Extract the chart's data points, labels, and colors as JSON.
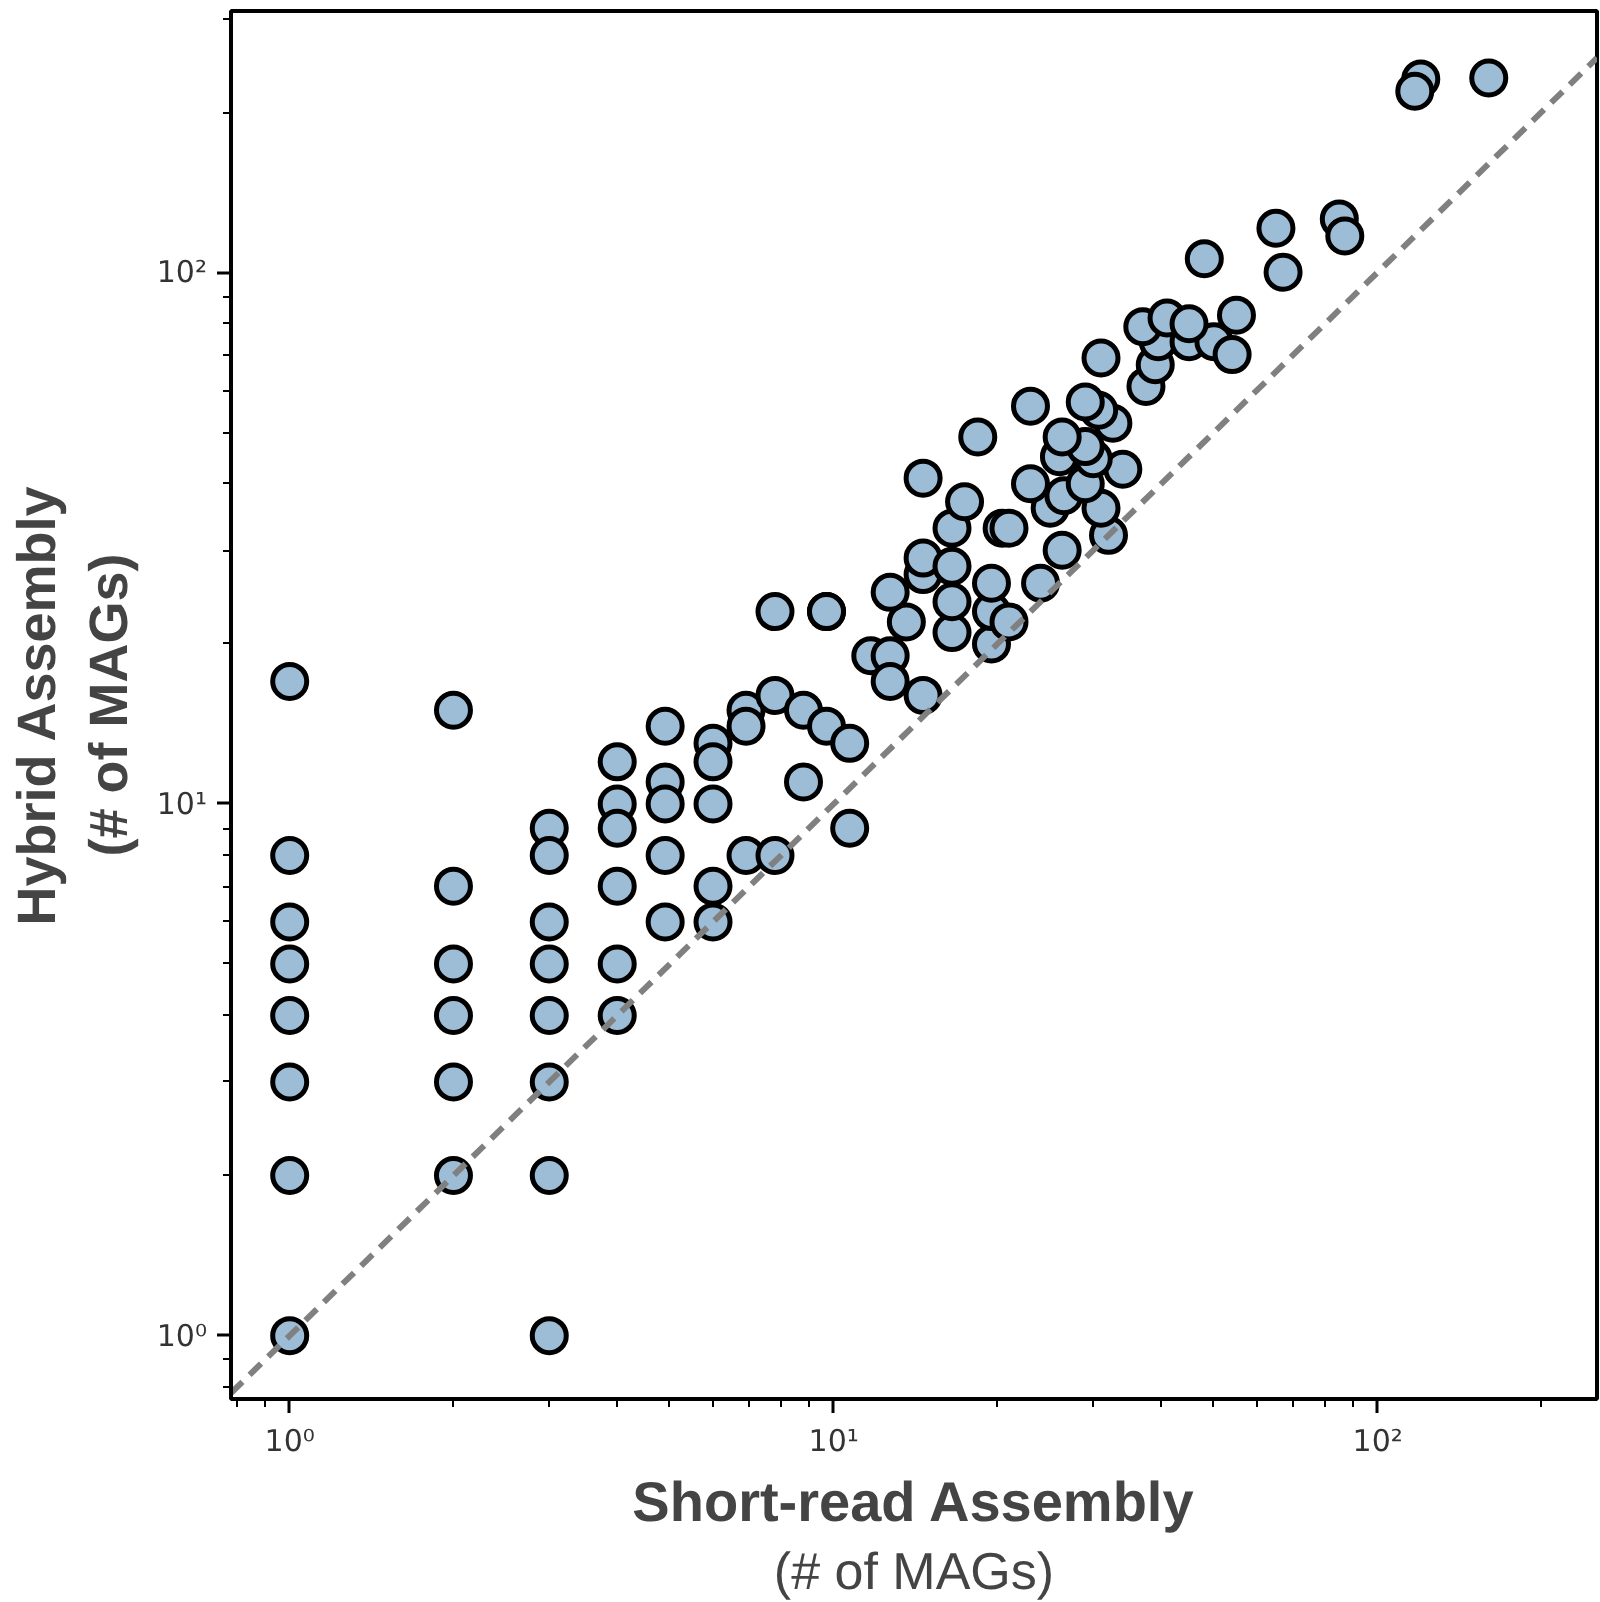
{
  "chart_data": {
    "type": "scatter",
    "xlabel": "Short-read Assembly\n(# of MAGs)",
    "ylabel": "Hybrid Assembly\n(# of MAGs)",
    "log": "xy",
    "grid": false,
    "xlim": [
      0.78,
      253
    ],
    "ylim": [
      0.76,
      310
    ],
    "xticks": [
      {
        "value": 1,
        "label": "10⁰"
      },
      {
        "value": 10,
        "label": "10¹"
      },
      {
        "value": 100,
        "label": "10²"
      }
    ],
    "yticks": [
      {
        "value": 1,
        "label": "10⁰"
      },
      {
        "value": 10,
        "label": "10¹"
      },
      {
        "value": 100,
        "label": "10²"
      }
    ],
    "series": [
      {
        "marker": "circle",
        "color": "#9dbdd6",
        "x": [
          1,
          1,
          1,
          1,
          1,
          1,
          1,
          1,
          2,
          2,
          2,
          2,
          2,
          2,
          3,
          3,
          3,
          3,
          3,
          3,
          3,
          3,
          4,
          4,
          4,
          4,
          4,
          4,
          4.9,
          4.9,
          4.9,
          4.9,
          4.9,
          6,
          6,
          6,
          6,
          6,
          6.9,
          6.9,
          6.9,
          7.8,
          7.8,
          7.8,
          8.8,
          8.8,
          9.7,
          9.7,
          10.7,
          10.7,
          9.7,
          11.7,
          12.7,
          12.7,
          14.6,
          13.6,
          12.7,
          14.6,
          14.6,
          16.5,
          16.5,
          16.5,
          16.5,
          19.5,
          19.5,
          19.5,
          21,
          24,
          26.3,
          20.4,
          21,
          32,
          17.4,
          25,
          31,
          26.5,
          23,
          29,
          14.6,
          34,
          30,
          26,
          29,
          26.3,
          18.4,
          32.6,
          30.7,
          29,
          23,
          31,
          37.5,
          39,
          39.5,
          45,
          50,
          54,
          37,
          41,
          45,
          55,
          48,
          67,
          65,
          85,
          87,
          120,
          117,
          160
        ],
        "values": [
          17,
          8,
          6,
          5,
          4,
          3,
          2,
          1,
          15,
          7,
          5,
          4,
          3,
          2,
          9,
          8,
          6,
          5,
          4,
          3,
          2,
          1,
          12,
          10,
          9,
          7,
          5,
          4,
          14,
          11,
          10,
          8,
          6,
          13,
          12,
          10,
          7,
          6,
          15,
          14,
          8,
          16,
          8,
          23,
          15,
          11,
          14,
          23,
          13,
          9,
          23,
          19,
          19,
          17,
          16,
          22,
          25,
          27,
          29,
          21,
          24,
          28,
          33,
          20,
          23,
          26,
          22,
          26,
          30,
          33,
          33,
          32,
          37,
          36,
          36,
          38,
          40,
          40,
          41,
          42.6,
          44.6,
          45,
          47,
          49,
          49,
          52,
          55,
          57,
          56,
          69,
          61,
          67,
          74,
          74,
          74,
          70,
          79,
          82,
          80,
          83,
          106,
          100,
          121,
          126,
          117,
          231,
          219,
          232
        ]
      },
      {
        "type": "line",
        "marker": "none",
        "color": "#808080",
        "line_style": "dashed",
        "x": [
          0.78,
          253
        ],
        "values": [
          0.78,
          253
        ]
      }
    ]
  }
}
